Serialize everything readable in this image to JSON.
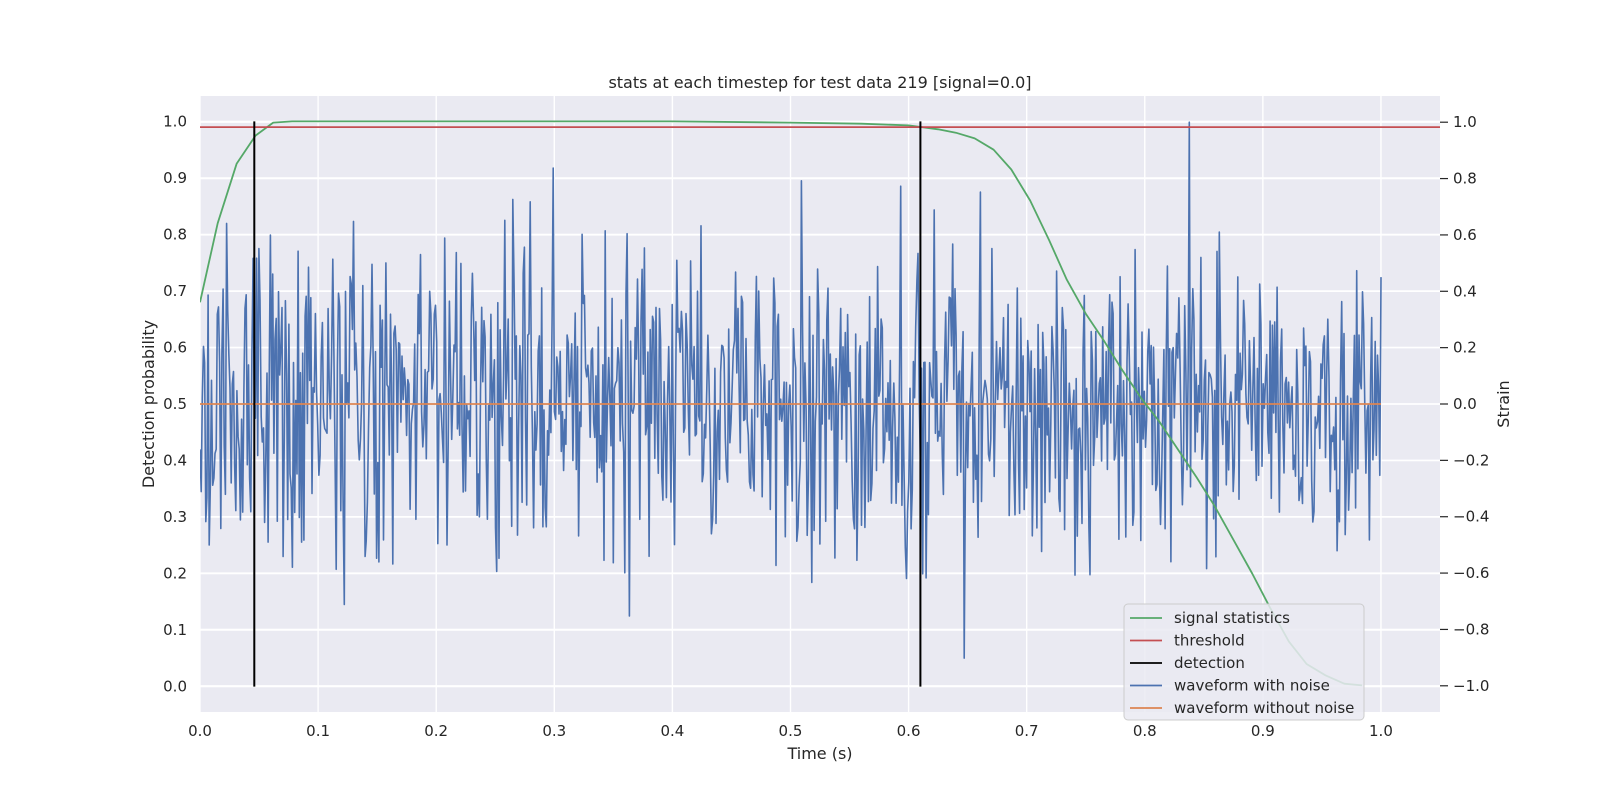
{
  "chart_data": {
    "type": "line",
    "title": "stats at each timestep for test data 219 [signal=0.0]",
    "xlabel": "Time (s)",
    "ylabel_left": "Detection probability",
    "ylabel_right": "Strain",
    "xlim": [
      0.0,
      1.05
    ],
    "ylim_left": [
      -0.045,
      1.045
    ],
    "ylim_right": [
      -1.093,
      1.093
    ],
    "xticks": [
      0.0,
      0.1,
      0.2,
      0.3,
      0.4,
      0.5,
      0.6,
      0.7,
      0.8,
      0.9,
      1.0
    ],
    "xtick_labels": [
      "0.0",
      "0.1",
      "0.2",
      "0.3",
      "0.4",
      "0.5",
      "0.6",
      "0.7",
      "0.8",
      "0.9",
      "1.0"
    ],
    "yticks_left": [
      0.0,
      0.1,
      0.2,
      0.3,
      0.4,
      0.5,
      0.6,
      0.7,
      0.8,
      0.9,
      1.0
    ],
    "ytick_labels_left": [
      "0.0",
      "0.1",
      "0.2",
      "0.3",
      "0.4",
      "0.5",
      "0.6",
      "0.7",
      "0.8",
      "0.9",
      "1.0"
    ],
    "yticks_right": [
      -1.0,
      -0.8,
      -0.6,
      -0.4,
      -0.2,
      0.0,
      0.2,
      0.4,
      0.6,
      0.8,
      1.0
    ],
    "ytick_labels_right": [
      "−1.0",
      "−0.8",
      "−0.6",
      "−0.4",
      "−0.2",
      "0.0",
      "0.2",
      "0.4",
      "0.6",
      "0.8",
      "1.0"
    ],
    "grid": true,
    "legend_position": "bottom-right",
    "colors": {
      "background": "#eaeaf2",
      "grid": "#ffffff",
      "signal_statistics": "#55a868",
      "threshold": "#c44e52",
      "detection": "#000000",
      "waveform_with_noise": "#4c72b0",
      "waveform_without_noise": "#dd8452"
    },
    "series": [
      {
        "name": "signal statistics",
        "axis": "left",
        "x": [
          0.0,
          0.015,
          0.031,
          0.047,
          0.062,
          0.078,
          0.1,
          0.2,
          0.3,
          0.4,
          0.5,
          0.56,
          0.6,
          0.625,
          0.64,
          0.656,
          0.672,
          0.687,
          0.703,
          0.719,
          0.734,
          0.75,
          0.766,
          0.781,
          0.797,
          0.812,
          0.828,
          0.844,
          0.859,
          0.875,
          0.891,
          0.906,
          0.922,
          0.937,
          0.953,
          0.969,
          0.984
        ],
        "y": [
          0.68,
          0.82,
          0.925,
          0.975,
          0.998,
          1.0,
          1.0,
          1.0,
          1.0,
          1.0,
          0.998,
          0.996,
          0.993,
          0.986,
          0.98,
          0.97,
          0.95,
          0.915,
          0.86,
          0.79,
          0.72,
          0.66,
          0.61,
          0.56,
          0.51,
          0.47,
          0.42,
          0.37,
          0.32,
          0.26,
          0.2,
          0.14,
          0.08,
          0.04,
          0.02,
          0.005,
          0.002
        ]
      },
      {
        "name": "threshold",
        "axis": "left",
        "x": [
          0.0,
          1.05
        ],
        "y": [
          0.99,
          0.99
        ]
      },
      {
        "name": "detection",
        "axis": "left",
        "x": [
          0.046,
          0.046
        ],
        "y": [
          0.0,
          1.0
        ]
      },
      {
        "name": "detection",
        "axis": "left",
        "x": [
          0.61,
          0.61
        ],
        "y": [
          0.0,
          1.0
        ]
      },
      {
        "name": "waveform with noise",
        "axis": "right",
        "x_start": 0.0,
        "x_end": 1.0,
        "amplitude_std": 0.28,
        "points": 1024
      },
      {
        "name": "waveform without noise",
        "axis": "right",
        "x": [
          0.0,
          1.0
        ],
        "y": [
          0.0,
          0.0
        ]
      }
    ],
    "legend": [
      "signal statistics",
      "threshold",
      "detection",
      "waveform with noise",
      "waveform without noise"
    ]
  }
}
